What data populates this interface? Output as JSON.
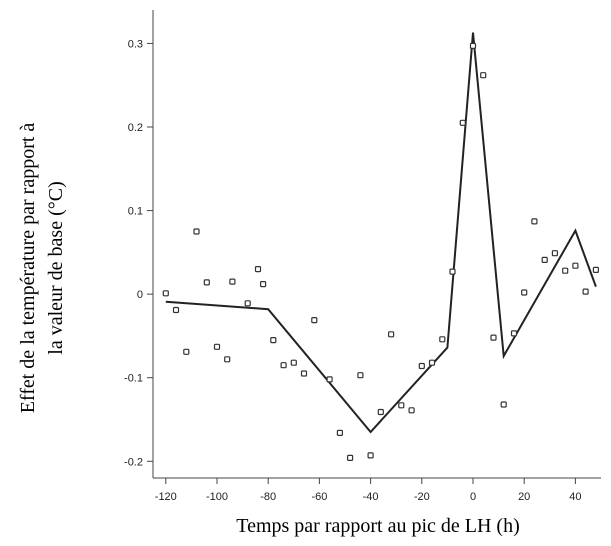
{
  "chart_data": {
    "type": "scatter",
    "title": "",
    "xlabel": "Temps par rapport au pic de LH (h)",
    "ylabel": [
      "Effet de la température par rapport à",
      "la valeur de base (°C)"
    ],
    "xlim": [
      -125,
      50
    ],
    "ylim": [
      -0.22,
      0.34
    ],
    "x_ticks": [
      -120,
      -100,
      -80,
      -60,
      -40,
      -20,
      0,
      20,
      40
    ],
    "x_tick_labels": [
      "-120",
      "-100",
      "-80",
      "-60",
      "-40",
      "-20",
      "0",
      "20",
      "40"
    ],
    "y_ticks": [
      -0.2,
      -0.1,
      0,
      0.1,
      0.2,
      0.3
    ],
    "y_tick_labels": [
      "-0.2",
      "-0.1",
      "0",
      "0.1",
      "0.2",
      "0.3"
    ],
    "grid": false,
    "series": [
      {
        "kind": "points",
        "x": [
          -120,
          -116,
          -112,
          -108,
          -104,
          -100,
          -96,
          -94,
          -88,
          -84,
          -82,
          -78,
          -74,
          -70,
          -66,
          -62,
          -56,
          -52,
          -48,
          -44,
          -40,
          -36,
          -32,
          -28,
          -24,
          -20,
          -16,
          -12,
          -8,
          -4,
          0,
          4,
          8,
          12,
          16,
          20,
          24,
          28,
          32,
          36,
          40,
          44,
          48
        ],
        "y": [
          0.001,
          -0.019,
          -0.069,
          0.075,
          0.014,
          -0.063,
          -0.078,
          0.015,
          -0.011,
          0.03,
          0.012,
          -0.055,
          -0.085,
          -0.082,
          -0.095,
          -0.031,
          -0.102,
          -0.166,
          -0.196,
          -0.097,
          -0.193,
          -0.141,
          -0.048,
          -0.133,
          -0.139,
          -0.086,
          -0.082,
          -0.054,
          0.027,
          0.205,
          0.297,
          0.262,
          -0.052,
          -0.132,
          -0.047,
          0.002,
          0.087,
          0.041,
          0.049,
          0.028,
          0.034,
          0.003,
          0.029
        ]
      },
      {
        "kind": "line",
        "x": [
          -120,
          -80,
          -40,
          -10,
          0,
          12,
          40,
          48
        ],
        "y": [
          -0.009,
          -0.018,
          -0.165,
          -0.064,
          0.313,
          -0.074,
          0.076,
          0.009
        ]
      }
    ]
  }
}
